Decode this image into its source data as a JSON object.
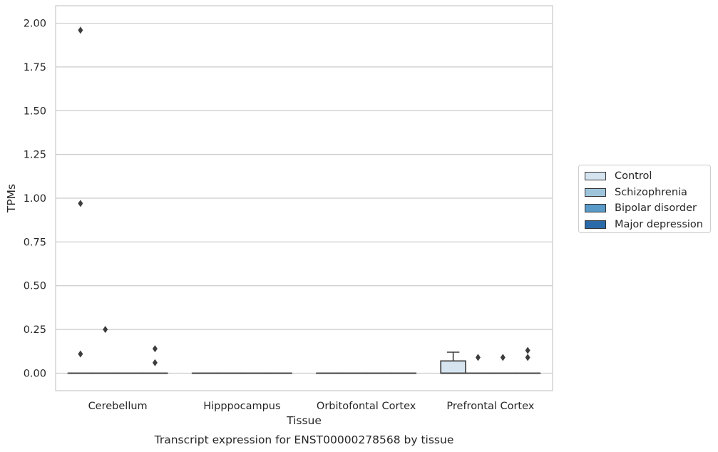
{
  "chart_data": {
    "type": "box",
    "title": "Transcript expression for ENST00000278568 by tissue",
    "xlabel": "Tissue",
    "ylabel": "TPMs",
    "ylim": [
      -0.1,
      2.1
    ],
    "yticks": [
      "0.00",
      "0.25",
      "0.50",
      "0.75",
      "1.00",
      "1.25",
      "1.50",
      "1.75",
      "2.00"
    ],
    "ytick_values": [
      0,
      0.25,
      0.5,
      0.75,
      1.0,
      1.25,
      1.5,
      1.75,
      2.0
    ],
    "grid": "horizontal",
    "legend_position": "right",
    "categories": [
      "Cerebellum",
      "Hipppocampus",
      "Orbitofontal Cortex",
      "Prefrontal Cortex"
    ],
    "series": [
      {
        "name": "Control",
        "color": "#d6e4f0",
        "boxes": [
          {
            "q1": 0,
            "median": 0,
            "q3": 0,
            "whisker_low": 0,
            "whisker_high": 0,
            "outliers": [
              1.96,
              0.97,
              0.11
            ]
          },
          {
            "q1": 0,
            "median": 0,
            "q3": 0,
            "whisker_low": 0,
            "whisker_high": 0,
            "outliers": []
          },
          {
            "q1": 0,
            "median": 0,
            "q3": 0,
            "whisker_low": 0,
            "whisker_high": 0,
            "outliers": []
          },
          {
            "q1": 0,
            "median": 0,
            "q3": 0.07,
            "whisker_low": 0,
            "whisker_high": 0.12,
            "outliers": []
          }
        ]
      },
      {
        "name": "Schizophrenia",
        "color": "#9ec4dc",
        "boxes": [
          {
            "q1": 0,
            "median": 0,
            "q3": 0,
            "whisker_low": 0,
            "whisker_high": 0,
            "outliers": [
              0.25
            ]
          },
          {
            "q1": 0,
            "median": 0,
            "q3": 0,
            "whisker_low": 0,
            "whisker_high": 0,
            "outliers": []
          },
          {
            "q1": 0,
            "median": 0,
            "q3": 0,
            "whisker_low": 0,
            "whisker_high": 0,
            "outliers": []
          },
          {
            "q1": 0,
            "median": 0,
            "q3": 0,
            "whisker_low": 0,
            "whisker_high": 0,
            "outliers": [
              0.09
            ]
          }
        ]
      },
      {
        "name": "Bipolar disorder",
        "color": "#5a9ac8",
        "boxes": [
          {
            "q1": 0,
            "median": 0,
            "q3": 0,
            "whisker_low": 0,
            "whisker_high": 0,
            "outliers": []
          },
          {
            "q1": 0,
            "median": 0,
            "q3": 0,
            "whisker_low": 0,
            "whisker_high": 0,
            "outliers": []
          },
          {
            "q1": 0,
            "median": 0,
            "q3": 0,
            "whisker_low": 0,
            "whisker_high": 0,
            "outliers": []
          },
          {
            "q1": 0,
            "median": 0,
            "q3": 0,
            "whisker_low": 0,
            "whisker_high": 0,
            "outliers": [
              0.09
            ]
          }
        ]
      },
      {
        "name": "Major depression",
        "color": "#2b6aa8",
        "boxes": [
          {
            "q1": 0,
            "median": 0,
            "q3": 0,
            "whisker_low": 0,
            "whisker_high": 0,
            "outliers": [
              0.14,
              0.06
            ]
          },
          {
            "q1": 0,
            "median": 0,
            "q3": 0,
            "whisker_low": 0,
            "whisker_high": 0,
            "outliers": []
          },
          {
            "q1": 0,
            "median": 0,
            "q3": 0,
            "whisker_low": 0,
            "whisker_high": 0,
            "outliers": []
          },
          {
            "q1": 0,
            "median": 0,
            "q3": 0,
            "whisker_low": 0,
            "whisker_high": 0,
            "outliers": [
              0.13,
              0.09
            ]
          }
        ]
      }
    ],
    "edge_color": "#3a3a3a",
    "grid_color": "#cccccc"
  }
}
